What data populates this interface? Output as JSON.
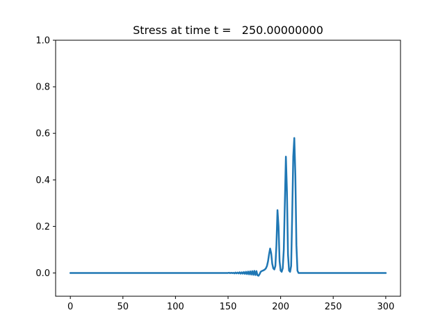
{
  "chart_data": {
    "type": "line",
    "title": "Stress at time t =   250.00000000",
    "xlabel": "",
    "ylabel": "",
    "xlim": [
      -14,
      314
    ],
    "ylim": [
      -0.1,
      1.0
    ],
    "xticks": [
      0,
      50,
      100,
      150,
      200,
      250,
      300
    ],
    "yticks": [
      0.0,
      0.2,
      0.4,
      0.6,
      0.8,
      1.0
    ],
    "xtick_labels": [
      "0",
      "50",
      "100",
      "150",
      "200",
      "250",
      "300"
    ],
    "ytick_labels": [
      "0.0",
      "0.2",
      "0.4",
      "0.6",
      "0.8",
      "1.0"
    ],
    "grid": false,
    "line_color": "#1f77b4",
    "series": [
      {
        "x": [
          0,
          150,
          151,
          152,
          153,
          154,
          155,
          156,
          157,
          158,
          159,
          160,
          161,
          162,
          163,
          164,
          165,
          166,
          167,
          168,
          169,
          170,
          171,
          172,
          173,
          174,
          175,
          176,
          177,
          178,
          179,
          180,
          181,
          182,
          183,
          184,
          185,
          186,
          187,
          188,
          189,
          190,
          191,
          192,
          193,
          194,
          195,
          196,
          197,
          198,
          199,
          200,
          201,
          202,
          203,
          204,
          205,
          206,
          207,
          208,
          209,
          210,
          211,
          212,
          213,
          214,
          215,
          216,
          217,
          218,
          219,
          220,
          300
        ],
        "y": [
          0,
          0,
          0.001,
          -0.001,
          0.001,
          -0.001,
          0.001,
          -0.002,
          0.002,
          -0.002,
          0.002,
          -0.002,
          0.003,
          -0.003,
          0.003,
          -0.003,
          0.004,
          -0.004,
          0.005,
          -0.005,
          0.006,
          -0.006,
          0.007,
          -0.007,
          0.008,
          -0.008,
          0.009,
          -0.009,
          0.008,
          -0.01,
          -0.012,
          -0.005,
          0.005,
          0.008,
          0.01,
          0.012,
          0.015,
          0.02,
          0.03,
          0.05,
          0.08,
          0.105,
          0.085,
          0.04,
          0.02,
          0.015,
          0.03,
          0.12,
          0.27,
          0.2,
          0.05,
          0.01,
          0.005,
          0.02,
          0.1,
          0.3,
          0.5,
          0.35,
          0.08,
          0.01,
          0.005,
          0.03,
          0.25,
          0.5,
          0.58,
          0.42,
          0.12,
          0.01,
          0,
          0,
          0,
          0,
          0
        ]
      }
    ]
  }
}
